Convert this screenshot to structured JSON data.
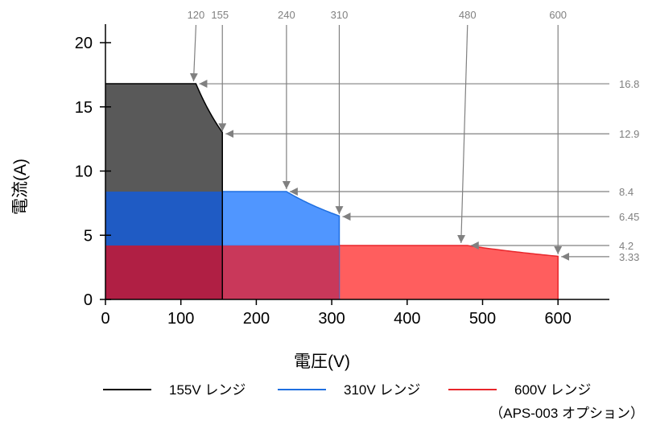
{
  "chart_data": {
    "type": "area",
    "title": "",
    "xlabel": "電圧(V)",
    "ylabel": "電流(A)",
    "xlim": [
      0,
      650
    ],
    "ylim": [
      0,
      21
    ],
    "x_ticks": [
      0,
      100,
      200,
      300,
      400,
      500,
      600
    ],
    "y_ticks": [
      0,
      5,
      10,
      15,
      20
    ],
    "grid": false,
    "legend_position": "bottom",
    "series": [
      {
        "name": "155V レンジ",
        "color": "#000000",
        "fill": "#595959",
        "outline": [
          [
            0,
            16.8
          ],
          [
            120,
            16.8
          ],
          [
            155,
            12.9
          ],
          [
            155,
            0
          ]
        ]
      },
      {
        "name": "310V レンジ",
        "color": "#1f6fe0",
        "fill": "#3d8bff",
        "outline": [
          [
            0,
            8.4
          ],
          [
            240,
            8.4
          ],
          [
            310,
            6.45
          ],
          [
            310,
            0
          ]
        ]
      },
      {
        "name": "600V レンジ",
        "color": "#e8262b",
        "fill": "#ff4d4d",
        "outline": [
          [
            0,
            4.2
          ],
          [
            480,
            4.2
          ],
          [
            600,
            3.33
          ],
          [
            600,
            0
          ]
        ]
      }
    ],
    "voltage_annotations": [
      "120",
      "155",
      "240",
      "310",
      "480",
      "600"
    ],
    "current_annotations": [
      "16.8",
      "12.9",
      "8.4",
      "6.45",
      "4.2",
      "3.33"
    ],
    "footnote": "（APS-003 オプション）"
  }
}
